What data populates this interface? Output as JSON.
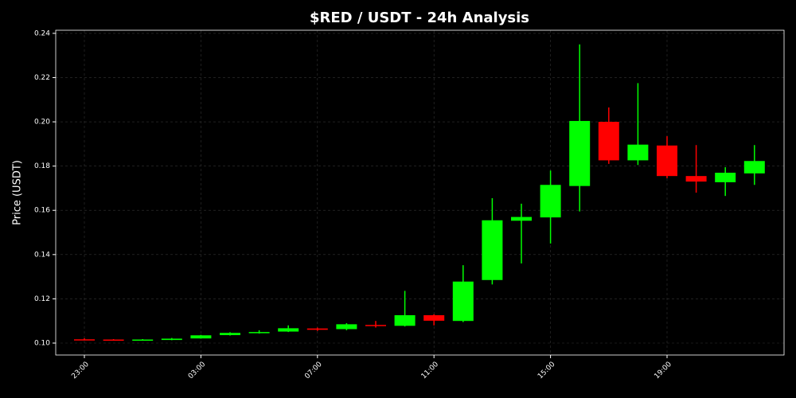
{
  "chart_data": {
    "type": "candlestick",
    "title": "$RED / USDT - 24h Analysis",
    "y_label": "Price (USDT)",
    "categories": [
      "23:00",
      null,
      null,
      null,
      "03:00",
      null,
      null,
      null,
      "07:00",
      null,
      null,
      null,
      "11:00",
      null,
      null,
      null,
      "15:00",
      null,
      null,
      null,
      "19:00",
      null,
      null,
      null
    ],
    "series": [
      {
        "open": [
          0.1017,
          0.1016,
          0.1013,
          0.1014,
          0.1021,
          0.1036,
          0.1045,
          0.1052,
          0.1066,
          0.1063,
          0.1082,
          0.1078,
          0.1126,
          0.11,
          0.1285,
          0.1553,
          0.1568,
          0.171,
          0.2,
          0.1826,
          0.1893,
          0.1755,
          0.1727,
          0.1767
        ],
        "high": [
          0.1022,
          0.1018,
          0.1018,
          0.1023,
          0.1037,
          0.1049,
          0.1058,
          0.108,
          0.107,
          0.109,
          0.11,
          0.1236,
          0.113,
          0.1352,
          0.1655,
          0.163,
          0.178,
          0.235,
          0.2065,
          0.2175,
          0.1935,
          0.1895,
          0.1795,
          0.1895
        ],
        "low": [
          0.1013,
          0.1012,
          0.1012,
          0.1013,
          0.102,
          0.1034,
          0.1043,
          0.105,
          0.1055,
          0.1058,
          0.107,
          0.1075,
          0.108,
          0.1095,
          0.1265,
          0.136,
          0.145,
          0.1595,
          0.181,
          0.1805,
          0.1745,
          0.168,
          0.1665,
          0.1715
        ],
        "close": [
          0.1015,
          0.1014,
          0.1016,
          0.102,
          0.1035,
          0.1046,
          0.105,
          0.1067,
          0.106,
          0.1085,
          0.1077,
          0.1126,
          0.1101,
          0.1278,
          0.1555,
          0.157,
          0.1715,
          0.2004,
          0.1826,
          0.1897,
          0.1755,
          0.173,
          0.177,
          0.1823
        ]
      }
    ],
    "up_color": "#00ff00",
    "down_color": "#ff0000",
    "ylim": [
      0.0946,
      0.2414
    ],
    "yticks": [
      {
        "value": 0.1,
        "label": "0.10"
      },
      0.12,
      0.14,
      0.16,
      0.18,
      {
        "value": 0.2,
        "label": "0.20"
      },
      0.22,
      0.24
    ],
    "grid": true
  }
}
